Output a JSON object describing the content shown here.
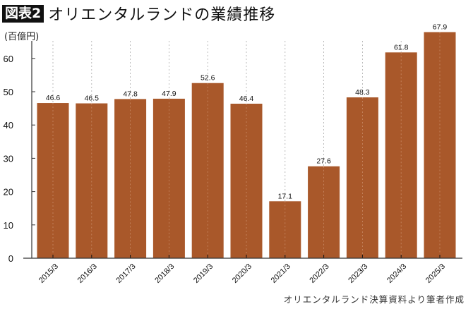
{
  "header": {
    "badge": "図表2",
    "title": "オリエンタルランドの業績推移"
  },
  "chart_data": {
    "type": "bar",
    "title": "オリエンタルランドの業績推移",
    "ylabel": "(百億円)",
    "xlabel": "",
    "categories": [
      "2015/3",
      "2016/3",
      "2017/3",
      "2018/3",
      "2019/3",
      "2020/3",
      "2021/3",
      "2022/3",
      "2023/3",
      "2024/3",
      "2025/3"
    ],
    "values": [
      46.6,
      46.5,
      47.8,
      47.9,
      52.6,
      46.4,
      17.1,
      27.6,
      48.3,
      61.8,
      67.9
    ],
    "data_labels": [
      "46.6",
      "46.5",
      "47.8",
      "47.9",
      "52.6",
      "46.4",
      "17.1",
      "27.6",
      "48.3",
      "61.8",
      "67.9"
    ],
    "ylim": [
      0,
      70
    ],
    "yticks": [
      0,
      10,
      20,
      30,
      40,
      50,
      60
    ],
    "grid": "vertical dotted",
    "bar_color": "#a9582a",
    "source": "オリエンタルランド決算資料より筆者作成"
  }
}
